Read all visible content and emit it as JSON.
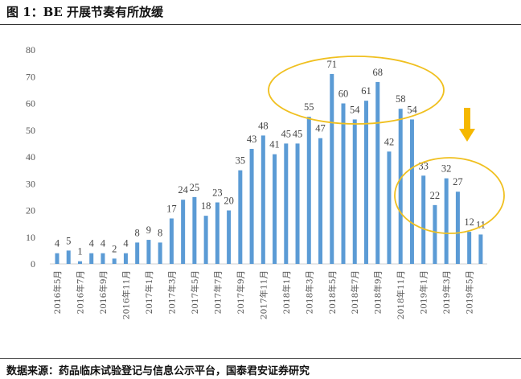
{
  "header": {
    "title": "图 1：BE 开展节奏有所放缓"
  },
  "footer": {
    "source": "数据来源：药品临床试验登记与信息公示平台，国泰君安证券研究"
  },
  "colors": {
    "bar": "#5b9bd5",
    "highlight": "#f0c020",
    "arrow": "#f5b800"
  },
  "chart_data": {
    "type": "bar",
    "title": "图 1：BE 开展节奏有所放缓",
    "xlabel": "",
    "ylabel": "",
    "ylim": [
      0,
      80
    ],
    "yticks": [
      0,
      10,
      20,
      30,
      40,
      50,
      60,
      70,
      80
    ],
    "grid": false,
    "categories": [
      "2016年5月",
      "2016年6月",
      "2016年7月",
      "2016年8月",
      "2016年9月",
      "2016年10月",
      "2016年11月",
      "2016年12月",
      "2017年1月",
      "2017年2月",
      "2017年3月",
      "2017年4月",
      "2017年5月",
      "2017年6月",
      "2017年7月",
      "2017年8月",
      "2017年9月",
      "2017年10月",
      "2017年11月",
      "2017年12月",
      "2018年1月",
      "2018年2月",
      "2018年3月",
      "2018年4月",
      "2018年5月",
      "2018年6月",
      "2018年7月",
      "2018年8月",
      "2018年9月",
      "2018年10月",
      "2018年11月",
      "2018年12月",
      "2019年1月",
      "2019年2月",
      "2019年3月",
      "2019年4月",
      "2019年5月",
      "2019年6月"
    ],
    "values": [
      4,
      5,
      1,
      4,
      4,
      2,
      4,
      8,
      9,
      8,
      17,
      24,
      25,
      18,
      23,
      20,
      35,
      43,
      48,
      41,
      45,
      45,
      55,
      47,
      71,
      60,
      54,
      61,
      68,
      42,
      58,
      54,
      33,
      22,
      32,
      27,
      12,
      11
    ],
    "xtick_labels_every": 2,
    "annotations": [
      {
        "type": "ellipse",
        "range": [
          "2018年3月",
          "2018年12月"
        ],
        "meaning": "peak period"
      },
      {
        "type": "ellipse",
        "range": [
          "2019年1月",
          "2019年6月"
        ],
        "meaning": "slowdown"
      },
      {
        "type": "arrow",
        "direction": "down"
      }
    ]
  }
}
